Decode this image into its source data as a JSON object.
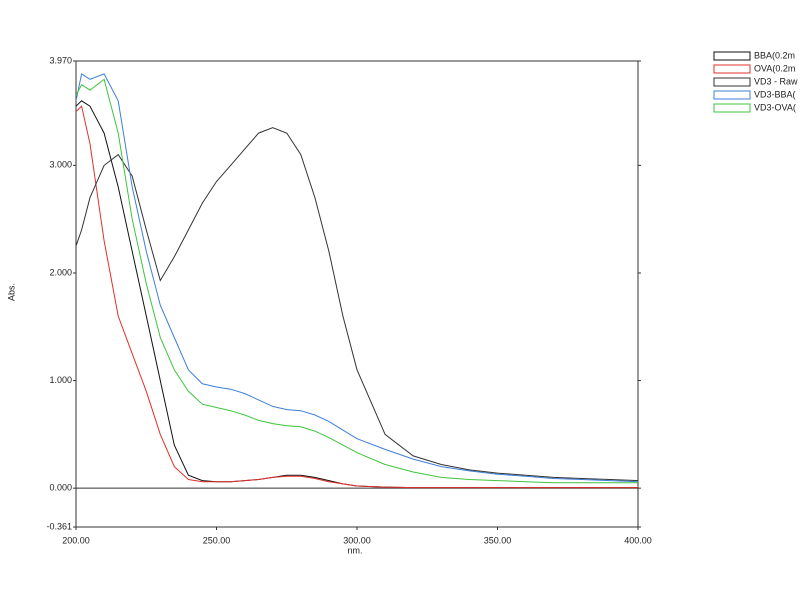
{
  "chart_data": {
    "type": "line",
    "x_label": "nm.",
    "y_label": "Abs.",
    "x": [
      200,
      202,
      205,
      210,
      215,
      220,
      225,
      230,
      235,
      240,
      245,
      250,
      255,
      260,
      265,
      270,
      275,
      280,
      285,
      290,
      295,
      300,
      310,
      320,
      330,
      340,
      350,
      360,
      370,
      380,
      390,
      400
    ],
    "series": [
      {
        "name": "BBA(0.2m",
        "color": "#111111",
        "values": [
          3.55,
          3.6,
          3.55,
          3.3,
          2.8,
          2.2,
          1.6,
          1.0,
          0.4,
          0.12,
          0.07,
          0.06,
          0.06,
          0.07,
          0.08,
          0.1,
          0.12,
          0.12,
          0.1,
          0.07,
          0.04,
          0.02,
          0.01,
          0.005,
          0.005,
          0.005,
          0.005,
          0.005,
          0.005,
          0.005,
          0.005,
          0.005
        ]
      },
      {
        "name": "OVA(0.2m",
        "color": "#e0302a",
        "values": [
          3.5,
          3.55,
          3.2,
          2.3,
          1.6,
          1.25,
          0.9,
          0.5,
          0.2,
          0.08,
          0.06,
          0.06,
          0.06,
          0.07,
          0.08,
          0.1,
          0.11,
          0.11,
          0.09,
          0.06,
          0.04,
          0.02,
          0.01,
          0.005,
          0.005,
          0.005,
          0.005,
          0.005,
          0.005,
          0.005,
          0.005,
          0.005
        ]
      },
      {
        "name": "VD3 - Raw",
        "color": "#333333",
        "values": [
          2.25,
          2.4,
          2.7,
          3.0,
          3.1,
          2.9,
          2.4,
          1.93,
          2.15,
          2.4,
          2.65,
          2.85,
          3.0,
          3.15,
          3.3,
          3.35,
          3.3,
          3.1,
          2.7,
          2.2,
          1.6,
          1.1,
          0.5,
          0.3,
          0.22,
          0.17,
          0.14,
          0.12,
          0.1,
          0.09,
          0.08,
          0.07
        ]
      },
      {
        "name": "VD3-BBA(",
        "color": "#3d7fd9",
        "values": [
          3.6,
          3.85,
          3.8,
          3.85,
          3.6,
          2.8,
          2.2,
          1.7,
          1.4,
          1.1,
          0.97,
          0.94,
          0.92,
          0.88,
          0.82,
          0.76,
          0.73,
          0.72,
          0.68,
          0.62,
          0.54,
          0.46,
          0.36,
          0.27,
          0.2,
          0.16,
          0.13,
          0.11,
          0.09,
          0.08,
          0.07,
          0.06
        ]
      },
      {
        "name": "VD3-OVA(",
        "color": "#3ec43e",
        "values": [
          3.65,
          3.75,
          3.7,
          3.8,
          3.3,
          2.5,
          1.9,
          1.4,
          1.1,
          0.9,
          0.78,
          0.75,
          0.72,
          0.68,
          0.63,
          0.6,
          0.58,
          0.57,
          0.53,
          0.47,
          0.4,
          0.33,
          0.22,
          0.15,
          0.1,
          0.08,
          0.07,
          0.06,
          0.05,
          0.05,
          0.05,
          0.05
        ]
      }
    ],
    "xlim": [
      200,
      400
    ],
    "xticks": [
      {
        "value": 200,
        "label": "200.00"
      },
      {
        "value": 250,
        "label": "250.00"
      },
      {
        "value": 300,
        "label": "300.00"
      },
      {
        "value": 350,
        "label": "350.00"
      },
      {
        "value": 400,
        "label": "400.00"
      }
    ],
    "ylim": [
      -0.361,
      3.97
    ],
    "yticks": [
      {
        "value": -0.361,
        "label": "-0.361"
      },
      {
        "value": 0,
        "label": "0.000"
      },
      {
        "value": 1,
        "label": "1.000"
      },
      {
        "value": 2,
        "label": "2.000"
      },
      {
        "value": 3,
        "label": "3.000"
      },
      {
        "value": 3.97,
        "label": "3.970"
      }
    ],
    "zero_line": true,
    "grid": false
  }
}
